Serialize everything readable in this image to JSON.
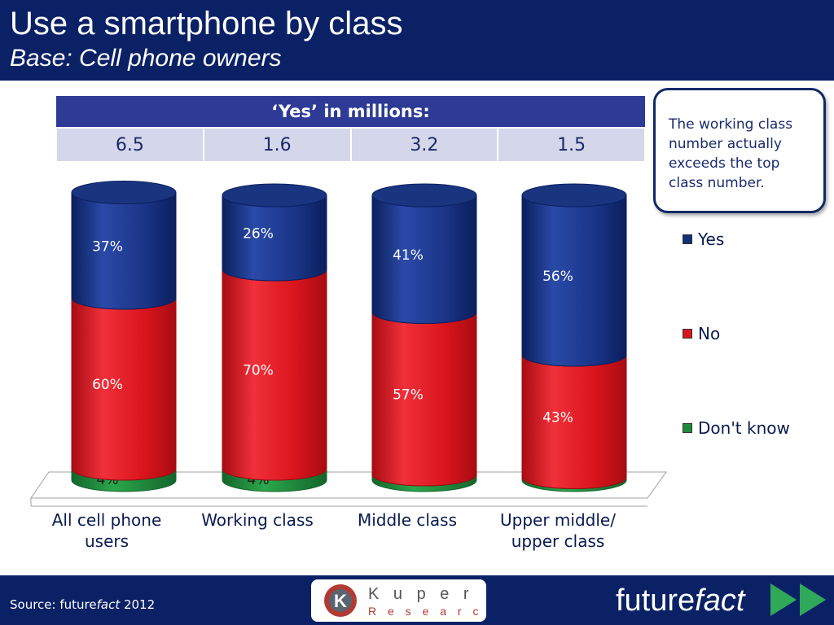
{
  "header": {
    "title": "Use a smartphone by class",
    "subtitle": "Base: Cell phone owners"
  },
  "yes_table": {
    "header": "‘Yes’ in millions:",
    "values": [
      "6.5",
      "1.6",
      "3.2",
      "1.5"
    ]
  },
  "callout": {
    "text": "The working class number actually exceeds the top class number."
  },
  "legend": [
    {
      "label": "Yes",
      "color": "#14307a"
    },
    {
      "label": "No",
      "color": "#d9141c"
    },
    {
      "label": "Don't know",
      "color": "#1f8a3c"
    }
  ],
  "chart_data": {
    "type": "bar",
    "stacked": true,
    "categories": [
      "All cell phone users",
      "Working class",
      "Middle class",
      "Upper middle/ upper class"
    ],
    "series": [
      {
        "name": "Don't know",
        "values": [
          4,
          4,
          2,
          1
        ],
        "color": "#1f8a3c"
      },
      {
        "name": "No",
        "values": [
          60,
          70,
          57,
          43
        ],
        "color": "#d9141c"
      },
      {
        "name": "Yes",
        "values": [
          37,
          26,
          41,
          56
        ],
        "color": "#14307a"
      }
    ],
    "value_suffix": "%",
    "legend_position": "right"
  },
  "footer": {
    "source_prefix": "Source: future",
    "source_italic": "fact",
    "source_suffix": " 2012",
    "logo_top": "K u p e r",
    "logo_bottom": "R e s e a r c h",
    "brand_regular": "future",
    "brand_italic": "fact"
  }
}
